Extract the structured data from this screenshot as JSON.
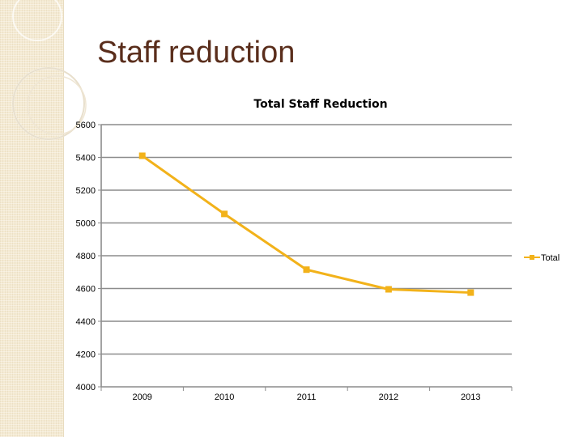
{
  "slide": {
    "title": "Staff reduction"
  },
  "chart_data": {
    "type": "line",
    "title": "Total Staff Reduction",
    "xlabel": "",
    "ylabel": "",
    "categories": [
      "2009",
      "2010",
      "2011",
      "2012",
      "2013"
    ],
    "series": [
      {
        "name": "Total",
        "values": [
          5410,
          5055,
          4715,
          4595,
          4575
        ],
        "color": "#f2b21a"
      }
    ],
    "ylim": [
      4000,
      5600
    ],
    "yticks": [
      4000,
      4200,
      4400,
      4600,
      4800,
      5000,
      5200,
      5400,
      5600
    ],
    "grid": true,
    "legend": "right"
  }
}
